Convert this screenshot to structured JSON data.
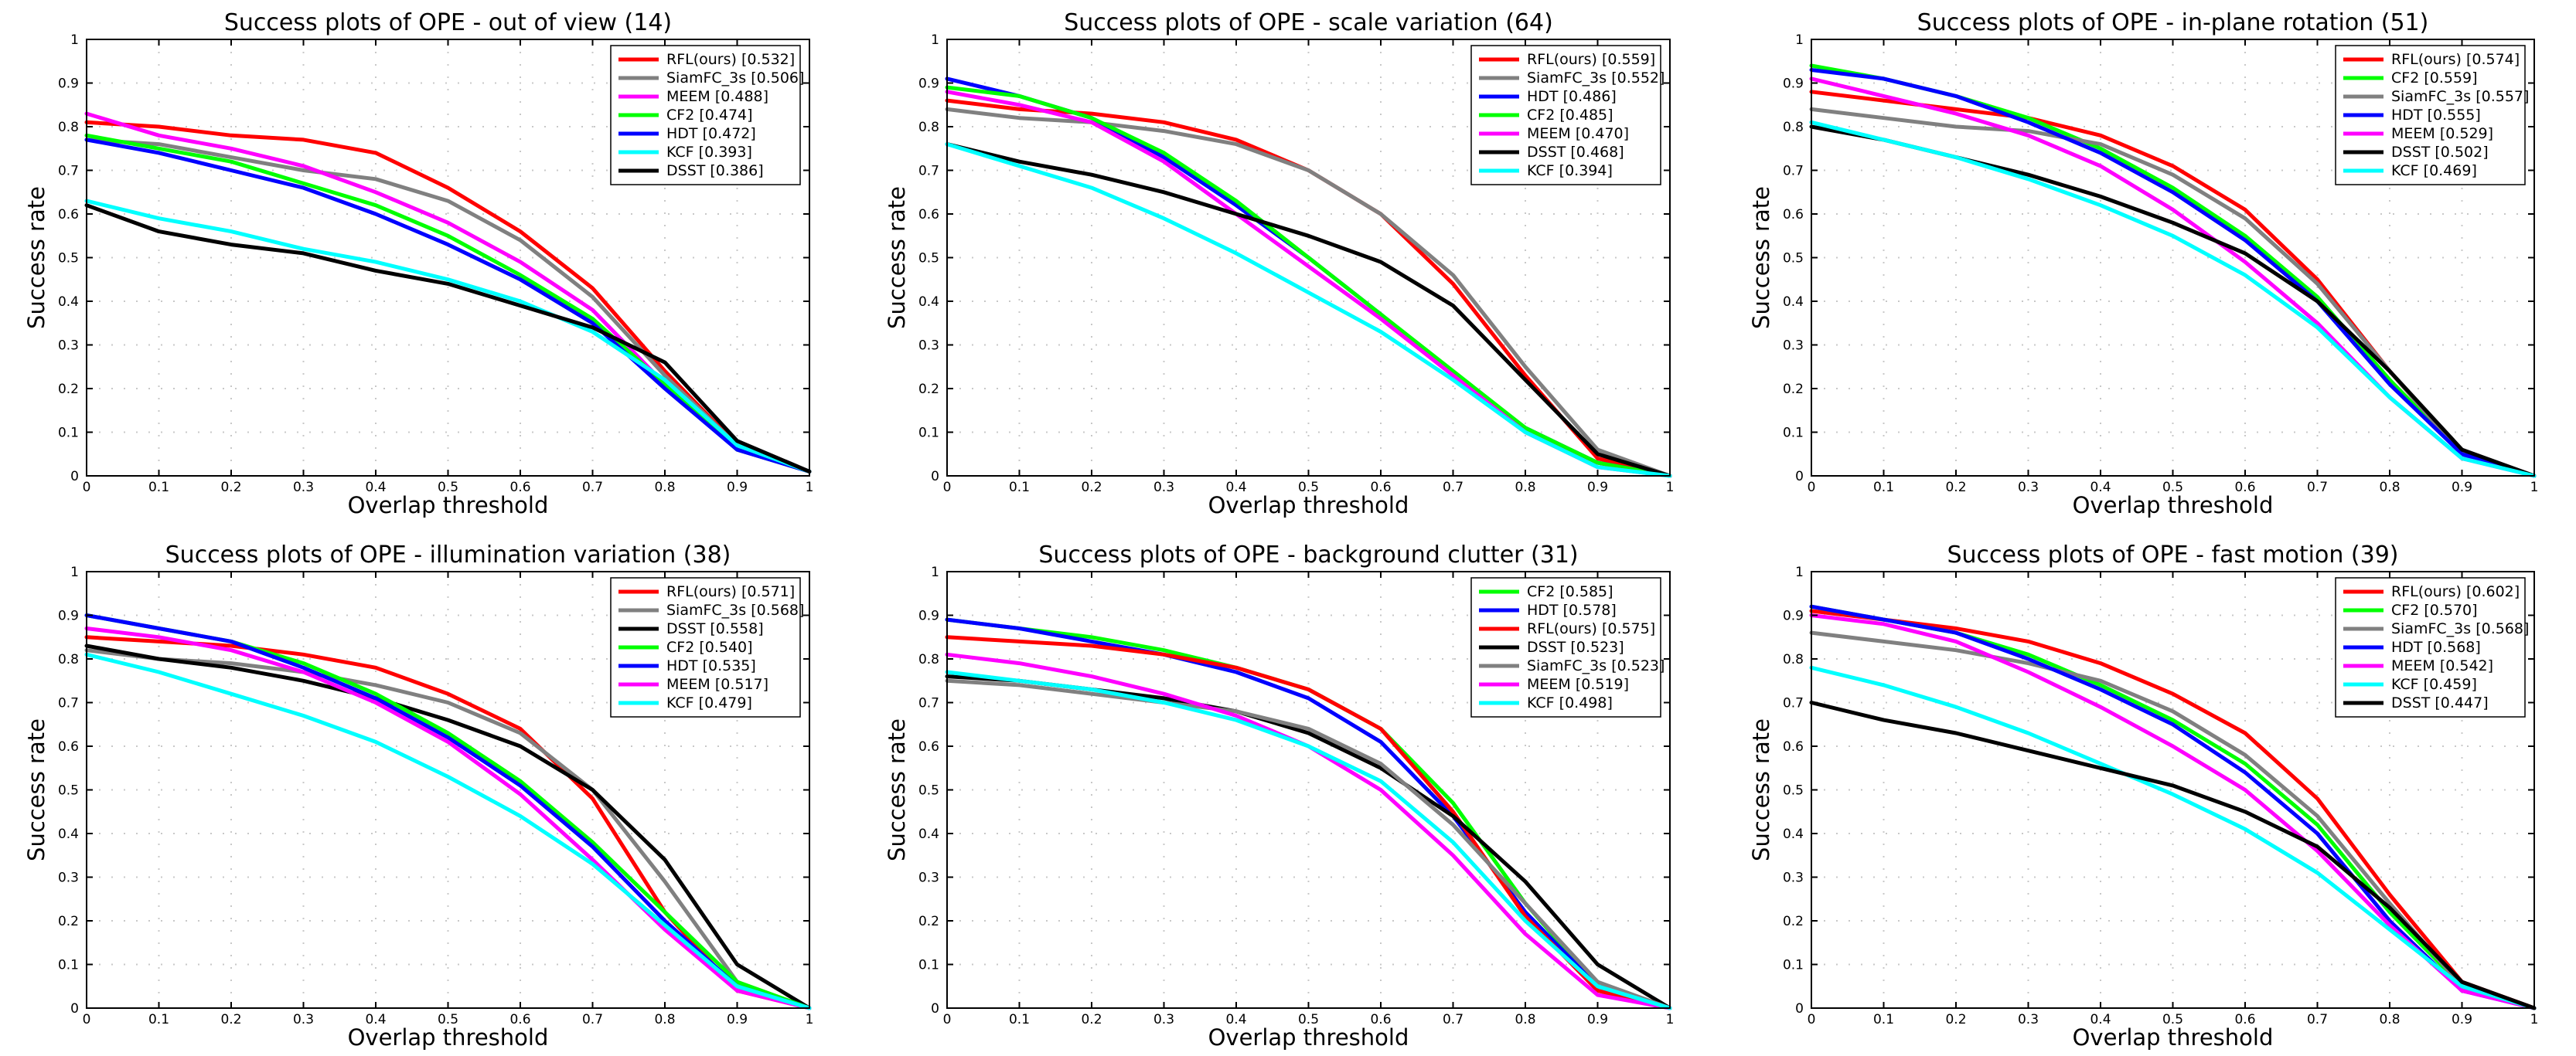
{
  "chart_data": [
    {
      "type": "line",
      "title": "Success plots of OPE - out of view (14)",
      "xlabel": "Overlap threshold",
      "ylabel": "Success rate",
      "xlim": [
        0,
        1
      ],
      "ylim": [
        0,
        1
      ],
      "grid": true,
      "legend_position": "top-right",
      "x_ticks": [
        "0",
        "0.1",
        "0.2",
        "0.3",
        "0.4",
        "0.5",
        "0.6",
        "0.7",
        "0.8",
        "0.9",
        "1"
      ],
      "y_ticks": [
        "0",
        "0.1",
        "0.2",
        "0.3",
        "0.4",
        "0.5",
        "0.6",
        "0.7",
        "0.8",
        "0.9",
        "1"
      ],
      "x": [
        0,
        0.1,
        0.2,
        0.3,
        0.4,
        0.5,
        0.6,
        0.7,
        0.8,
        0.9,
        1
      ],
      "series": [
        {
          "name": "RFL(ours) [0.532]",
          "color": "#ff0000",
          "values": [
            0.81,
            0.8,
            0.78,
            0.77,
            0.74,
            0.66,
            0.56,
            0.43,
            0.24,
            0.07,
            0.01
          ]
        },
        {
          "name": "SiamFC_3s [0.506]",
          "color": "#808080",
          "values": [
            0.77,
            0.76,
            0.73,
            0.7,
            0.68,
            0.63,
            0.54,
            0.41,
            0.23,
            0.07,
            0.01
          ]
        },
        {
          "name": "MEEM [0.488]",
          "color": "#ff00ff",
          "values": [
            0.83,
            0.78,
            0.75,
            0.71,
            0.65,
            0.58,
            0.49,
            0.38,
            0.21,
            0.06,
            0.01
          ]
        },
        {
          "name": "CF2 [0.474]",
          "color": "#00ff00",
          "values": [
            0.78,
            0.75,
            0.72,
            0.67,
            0.62,
            0.55,
            0.46,
            0.36,
            0.21,
            0.06,
            0.01
          ]
        },
        {
          "name": "HDT [0.472]",
          "color": "#0000ff",
          "values": [
            0.77,
            0.74,
            0.7,
            0.66,
            0.6,
            0.53,
            0.45,
            0.35,
            0.2,
            0.06,
            0.01
          ]
        },
        {
          "name": "KCF [0.393]",
          "color": "#00ffff",
          "values": [
            0.63,
            0.59,
            0.56,
            0.52,
            0.49,
            0.45,
            0.4,
            0.33,
            0.22,
            0.07,
            0.01
          ]
        },
        {
          "name": "DSST [0.386]",
          "color": "#000000",
          "values": [
            0.62,
            0.56,
            0.53,
            0.51,
            0.47,
            0.44,
            0.39,
            0.34,
            0.26,
            0.08,
            0.01
          ]
        }
      ]
    },
    {
      "type": "line",
      "title": "Success plots of OPE - scale variation (64)",
      "xlabel": "Overlap threshold",
      "ylabel": "Success rate",
      "xlim": [
        0,
        1
      ],
      "ylim": [
        0,
        1
      ],
      "grid": true,
      "legend_position": "top-right",
      "x_ticks": [
        "0",
        "0.1",
        "0.2",
        "0.3",
        "0.4",
        "0.5",
        "0.6",
        "0.7",
        "0.8",
        "0.9",
        "1"
      ],
      "y_ticks": [
        "0",
        "0.1",
        "0.2",
        "0.3",
        "0.4",
        "0.5",
        "0.6",
        "0.7",
        "0.8",
        "0.9",
        "1"
      ],
      "x": [
        0,
        0.1,
        0.2,
        0.3,
        0.4,
        0.5,
        0.6,
        0.7,
        0.8,
        0.9,
        1
      ],
      "series": [
        {
          "name": "RFL(ours) [0.559]",
          "color": "#ff0000",
          "values": [
            0.86,
            0.84,
            0.83,
            0.81,
            0.77,
            0.7,
            0.6,
            0.44,
            0.23,
            0.04,
            0.0
          ]
        },
        {
          "name": "SiamFC_3s [0.552]",
          "color": "#808080",
          "values": [
            0.84,
            0.82,
            0.81,
            0.79,
            0.76,
            0.7,
            0.6,
            0.46,
            0.25,
            0.06,
            0.0
          ]
        },
        {
          "name": "HDT [0.486]",
          "color": "#0000ff",
          "values": [
            0.91,
            0.87,
            0.82,
            0.73,
            0.62,
            0.5,
            0.37,
            0.23,
            0.11,
            0.03,
            0.0
          ]
        },
        {
          "name": "CF2 [0.485]",
          "color": "#00ff00",
          "values": [
            0.89,
            0.87,
            0.82,
            0.74,
            0.63,
            0.5,
            0.37,
            0.24,
            0.11,
            0.03,
            0.0
          ]
        },
        {
          "name": "MEEM [0.470]",
          "color": "#ff00ff",
          "values": [
            0.88,
            0.85,
            0.81,
            0.72,
            0.6,
            0.48,
            0.36,
            0.23,
            0.1,
            0.02,
            0.0
          ]
        },
        {
          "name": "DSST [0.468]",
          "color": "#000000",
          "values": [
            0.76,
            0.72,
            0.69,
            0.65,
            0.6,
            0.55,
            0.49,
            0.39,
            0.22,
            0.05,
            0.0
          ]
        },
        {
          "name": "KCF [0.394]",
          "color": "#00ffff",
          "values": [
            0.76,
            0.71,
            0.66,
            0.59,
            0.51,
            0.42,
            0.33,
            0.22,
            0.1,
            0.02,
            0.0
          ]
        }
      ]
    },
    {
      "type": "line",
      "title": "Success plots of OPE - in-plane rotation (51)",
      "xlabel": "Overlap threshold",
      "ylabel": "Success rate",
      "xlim": [
        0,
        1
      ],
      "ylim": [
        0,
        1
      ],
      "grid": true,
      "legend_position": "top-right",
      "x_ticks": [
        "0",
        "0.1",
        "0.2",
        "0.3",
        "0.4",
        "0.5",
        "0.6",
        "0.7",
        "0.8",
        "0.9",
        "1"
      ],
      "y_ticks": [
        "0",
        "0.1",
        "0.2",
        "0.3",
        "0.4",
        "0.5",
        "0.6",
        "0.7",
        "0.8",
        "0.9",
        "1"
      ],
      "x": [
        0,
        0.1,
        0.2,
        0.3,
        0.4,
        0.5,
        0.6,
        0.7,
        0.8,
        0.9,
        1
      ],
      "series": [
        {
          "name": "RFL(ours) [0.574]",
          "color": "#ff0000",
          "values": [
            0.88,
            0.86,
            0.84,
            0.82,
            0.78,
            0.71,
            0.61,
            0.45,
            0.24,
            0.05,
            0.0
          ]
        },
        {
          "name": "CF2 [0.559]",
          "color": "#00ff00",
          "values": [
            0.94,
            0.91,
            0.87,
            0.82,
            0.75,
            0.66,
            0.55,
            0.41,
            0.22,
            0.05,
            0.0
          ]
        },
        {
          "name": "SiamFC_3s [0.557]",
          "color": "#808080",
          "values": [
            0.84,
            0.82,
            0.8,
            0.79,
            0.76,
            0.69,
            0.59,
            0.44,
            0.24,
            0.05,
            0.0
          ]
        },
        {
          "name": "HDT [0.555]",
          "color": "#0000ff",
          "values": [
            0.93,
            0.91,
            0.87,
            0.81,
            0.74,
            0.65,
            0.54,
            0.4,
            0.21,
            0.05,
            0.0
          ]
        },
        {
          "name": "MEEM [0.529]",
          "color": "#ff00ff",
          "values": [
            0.91,
            0.87,
            0.83,
            0.78,
            0.71,
            0.61,
            0.49,
            0.35,
            0.18,
            0.04,
            0.0
          ]
        },
        {
          "name": "DSST [0.502]",
          "color": "#000000",
          "values": [
            0.8,
            0.77,
            0.73,
            0.69,
            0.64,
            0.58,
            0.51,
            0.4,
            0.24,
            0.06,
            0.0
          ]
        },
        {
          "name": "KCF [0.469]",
          "color": "#00ffff",
          "values": [
            0.81,
            0.77,
            0.73,
            0.68,
            0.62,
            0.55,
            0.46,
            0.34,
            0.18,
            0.04,
            0.0
          ]
        }
      ]
    },
    {
      "type": "line",
      "title": "Success plots of OPE - illumination variation (38)",
      "xlabel": "Overlap threshold",
      "ylabel": "Success rate",
      "xlim": [
        0,
        1
      ],
      "ylim": [
        0,
        1
      ],
      "grid": true,
      "legend_position": "top-right",
      "x_ticks": [
        "0",
        "0.1",
        "0.2",
        "0.3",
        "0.4",
        "0.5",
        "0.6",
        "0.7",
        "0.8",
        "0.9",
        "1"
      ],
      "y_ticks": [
        "0",
        "0.1",
        "0.2",
        "0.3",
        "0.4",
        "0.5",
        "0.6",
        "0.7",
        "0.8",
        "0.9",
        "1"
      ],
      "x": [
        0,
        0.1,
        0.2,
        0.3,
        0.4,
        0.5,
        0.6,
        0.7,
        0.8,
        0.9,
        1
      ],
      "series": [
        {
          "name": "RFL(ours) [0.571]",
          "color": "#ff0000",
          "values": [
            0.85,
            0.84,
            0.83,
            0.81,
            0.78,
            0.72,
            0.64,
            0.48,
            0.22,
            0.04,
            0.0
          ]
        },
        {
          "name": "SiamFC_3s [0.568]",
          "color": "#808080",
          "values": [
            0.82,
            0.8,
            0.79,
            0.77,
            0.74,
            0.7,
            0.63,
            0.5,
            0.29,
            0.06,
            0.0
          ]
        },
        {
          "name": "DSST [0.558]",
          "color": "#000000",
          "values": [
            0.83,
            0.8,
            0.78,
            0.75,
            0.71,
            0.66,
            0.6,
            0.5,
            0.34,
            0.1,
            0.0
          ]
        },
        {
          "name": "CF2 [0.540]",
          "color": "#00ff00",
          "values": [
            0.9,
            0.87,
            0.84,
            0.79,
            0.72,
            0.63,
            0.52,
            0.38,
            0.22,
            0.06,
            0.0
          ]
        },
        {
          "name": "HDT [0.535]",
          "color": "#0000ff",
          "values": [
            0.9,
            0.87,
            0.84,
            0.78,
            0.71,
            0.62,
            0.51,
            0.37,
            0.2,
            0.05,
            0.0
          ]
        },
        {
          "name": "MEEM [0.517]",
          "color": "#ff00ff",
          "values": [
            0.87,
            0.85,
            0.82,
            0.77,
            0.7,
            0.61,
            0.49,
            0.34,
            0.18,
            0.04,
            0.0
          ]
        },
        {
          "name": "KCF [0.479]",
          "color": "#00ffff",
          "values": [
            0.81,
            0.77,
            0.72,
            0.67,
            0.61,
            0.53,
            0.44,
            0.33,
            0.19,
            0.05,
            0.0
          ]
        }
      ]
    },
    {
      "type": "line",
      "title": "Success plots of OPE - background clutter (31)",
      "xlabel": "Overlap threshold",
      "ylabel": "Success rate",
      "xlim": [
        0,
        1
      ],
      "ylim": [
        0,
        1
      ],
      "grid": true,
      "legend_position": "top-right",
      "x_ticks": [
        "0",
        "0.1",
        "0.2",
        "0.3",
        "0.4",
        "0.5",
        "0.6",
        "0.7",
        "0.8",
        "0.9",
        "1"
      ],
      "y_ticks": [
        "0",
        "0.1",
        "0.2",
        "0.3",
        "0.4",
        "0.5",
        "0.6",
        "0.7",
        "0.8",
        "0.9",
        "1"
      ],
      "x": [
        0,
        0.1,
        0.2,
        0.3,
        0.4,
        0.5,
        0.6,
        0.7,
        0.8,
        0.9,
        1
      ],
      "series": [
        {
          "name": "CF2 [0.585]",
          "color": "#00ff00",
          "values": [
            0.89,
            0.87,
            0.85,
            0.82,
            0.78,
            0.73,
            0.64,
            0.47,
            0.24,
            0.05,
            0.0
          ]
        },
        {
          "name": "HDT [0.578]",
          "color": "#0000ff",
          "values": [
            0.89,
            0.87,
            0.84,
            0.81,
            0.77,
            0.71,
            0.61,
            0.44,
            0.22,
            0.05,
            0.0
          ]
        },
        {
          "name": "RFL(ours) [0.575]",
          "color": "#ff0000",
          "values": [
            0.85,
            0.84,
            0.83,
            0.81,
            0.78,
            0.73,
            0.64,
            0.45,
            0.21,
            0.04,
            0.0
          ]
        },
        {
          "name": "DSST [0.523]",
          "color": "#000000",
          "values": [
            0.76,
            0.75,
            0.73,
            0.71,
            0.68,
            0.63,
            0.55,
            0.44,
            0.29,
            0.1,
            0.0
          ]
        },
        {
          "name": "SiamFC_3s [0.523]",
          "color": "#808080",
          "values": [
            0.75,
            0.74,
            0.72,
            0.7,
            0.68,
            0.64,
            0.56,
            0.42,
            0.24,
            0.06,
            0.0
          ]
        },
        {
          "name": "MEEM [0.519]",
          "color": "#ff00ff",
          "values": [
            0.81,
            0.79,
            0.76,
            0.72,
            0.67,
            0.6,
            0.5,
            0.35,
            0.17,
            0.03,
            0.0
          ]
        },
        {
          "name": "KCF [0.498]",
          "color": "#00ffff",
          "values": [
            0.77,
            0.75,
            0.73,
            0.7,
            0.66,
            0.6,
            0.52,
            0.38,
            0.2,
            0.05,
            0.0
          ]
        }
      ]
    },
    {
      "type": "line",
      "title": "Success plots of OPE - fast motion (39)",
      "xlabel": "Overlap threshold",
      "ylabel": "Success rate",
      "xlim": [
        0,
        1
      ],
      "ylim": [
        0,
        1
      ],
      "grid": true,
      "legend_position": "top-right",
      "x_ticks": [
        "0",
        "0.1",
        "0.2",
        "0.3",
        "0.4",
        "0.5",
        "0.6",
        "0.7",
        "0.8",
        "0.9",
        "1"
      ],
      "y_ticks": [
        "0",
        "0.1",
        "0.2",
        "0.3",
        "0.4",
        "0.5",
        "0.6",
        "0.7",
        "0.8",
        "0.9",
        "1"
      ],
      "x": [
        0,
        0.1,
        0.2,
        0.3,
        0.4,
        0.5,
        0.6,
        0.7,
        0.8,
        0.9,
        1
      ],
      "series": [
        {
          "name": "RFL(ours) [0.602]",
          "color": "#ff0000",
          "values": [
            0.91,
            0.89,
            0.87,
            0.84,
            0.79,
            0.72,
            0.63,
            0.48,
            0.26,
            0.06,
            0.0
          ]
        },
        {
          "name": "CF2 [0.570]",
          "color": "#00ff00",
          "values": [
            0.92,
            0.89,
            0.86,
            0.81,
            0.74,
            0.66,
            0.56,
            0.42,
            0.22,
            0.05,
            0.0
          ]
        },
        {
          "name": "SiamFC_3s [0.568]",
          "color": "#808080",
          "values": [
            0.86,
            0.84,
            0.82,
            0.79,
            0.75,
            0.68,
            0.58,
            0.44,
            0.24,
            0.05,
            0.0
          ]
        },
        {
          "name": "HDT [0.568]",
          "color": "#0000ff",
          "values": [
            0.92,
            0.89,
            0.86,
            0.8,
            0.73,
            0.65,
            0.54,
            0.4,
            0.2,
            0.04,
            0.0
          ]
        },
        {
          "name": "MEEM [0.542]",
          "color": "#ff00ff",
          "values": [
            0.9,
            0.88,
            0.84,
            0.77,
            0.69,
            0.6,
            0.5,
            0.36,
            0.19,
            0.04,
            0.0
          ]
        },
        {
          "name": "KCF [0.459]",
          "color": "#00ffff",
          "values": [
            0.78,
            0.74,
            0.69,
            0.63,
            0.56,
            0.49,
            0.41,
            0.31,
            0.18,
            0.05,
            0.0
          ]
        },
        {
          "name": "DSST [0.447]",
          "color": "#000000",
          "values": [
            0.7,
            0.66,
            0.63,
            0.59,
            0.55,
            0.51,
            0.45,
            0.37,
            0.23,
            0.06,
            0.0
          ]
        }
      ]
    }
  ]
}
